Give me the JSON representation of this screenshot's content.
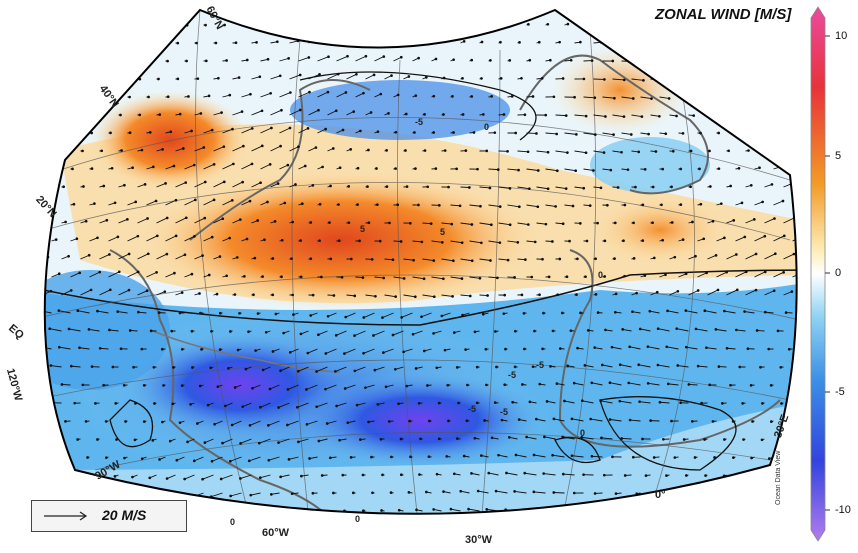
{
  "title": "ZONAL WIND [M/S]",
  "colorbar": {
    "ticks": [
      "10",
      "5",
      "0",
      "-5",
      "-10"
    ],
    "credit": "Ocean Data View",
    "colors": [
      "#ec4aa0",
      "#e33a2f",
      "#f6a024",
      "#ffffff",
      "#39a6e6",
      "#2b4bdf",
      "#8a5cf0"
    ]
  },
  "legend": {
    "label": "20 M/S"
  },
  "lat_labels": [
    "60°N",
    "40°N",
    "20°N",
    "EQ"
  ],
  "lon_labels": [
    "120°W",
    "90°W",
    "60°W",
    "30°W",
    "0°",
    "30°E"
  ],
  "contour_labels": [
    "0",
    "0",
    "-5",
    "5",
    "-5",
    "0",
    "-5",
    "-5",
    "0",
    "0",
    "-5",
    "5"
  ]
}
